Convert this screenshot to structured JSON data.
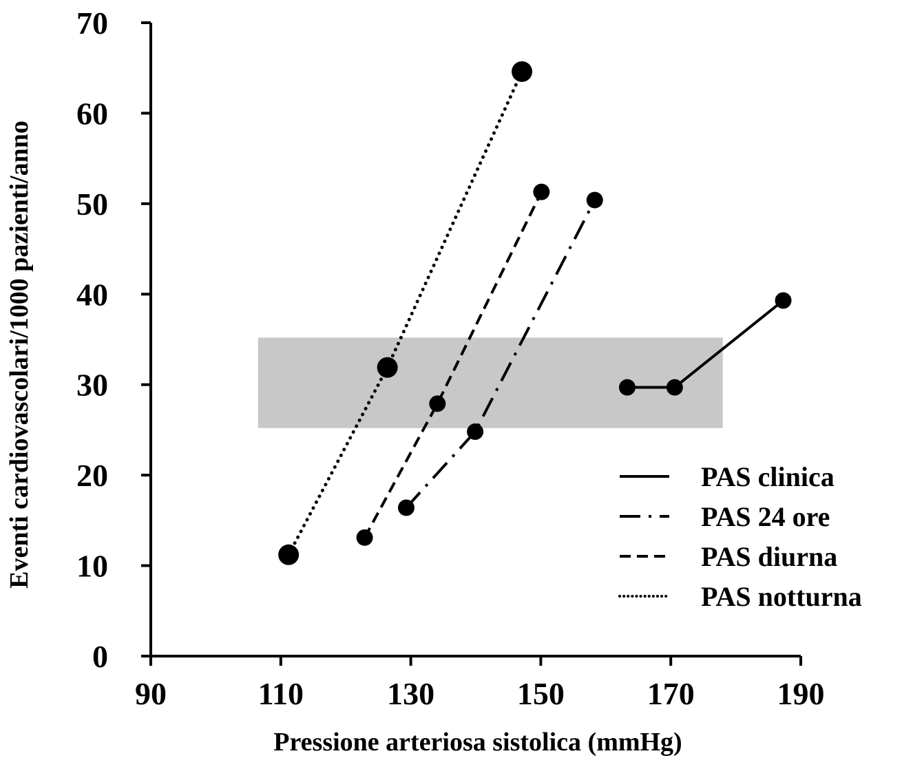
{
  "chart_data": {
    "type": "line",
    "title": "",
    "xlabel": "Pressione arteriosa sistolica (mmHg)",
    "ylabel": "Eventi cardiovascolari/1000 pazienti/anno",
    "xlim": [
      90,
      190
    ],
    "ylim": [
      0,
      70
    ],
    "xticks": [
      90,
      110,
      130,
      150,
      170,
      190
    ],
    "yticks": [
      0,
      10,
      20,
      30,
      40,
      50,
      60,
      70
    ],
    "x_tick_labels": [
      "90",
      "110",
      "130",
      "150",
      "170",
      "190"
    ],
    "y_tick_labels": [
      "0",
      "10",
      "20",
      "30",
      "40",
      "50",
      "60",
      "70"
    ],
    "grid": false,
    "legend_position": "bottom-right",
    "shaded_region": {
      "x": [
        106.5,
        178
      ],
      "y": [
        25.2,
        35.2
      ],
      "color": "#c8c8c8"
    },
    "series": [
      {
        "name": "PAS clinica",
        "style": "solid",
        "marker_size": "medium",
        "x": [
          163.3,
          170.6,
          187.3
        ],
        "y": [
          29.7,
          29.7,
          39.3
        ]
      },
      {
        "name": "PAS 24 ore",
        "style": "dashdot",
        "marker_size": "medium",
        "x": [
          129.3,
          139.9,
          158.3
        ],
        "y": [
          16.4,
          24.8,
          50.4
        ]
      },
      {
        "name": "PAS diurna",
        "style": "dashed",
        "marker_size": "medium",
        "x": [
          122.9,
          134.1,
          150.1
        ],
        "y": [
          13.1,
          27.9,
          51.3
        ]
      },
      {
        "name": "PAS notturna",
        "style": "dotted",
        "marker_size": "large",
        "x": [
          111.2,
          126.4,
          147.1
        ],
        "y": [
          11.2,
          31.9,
          64.6
        ]
      }
    ]
  }
}
